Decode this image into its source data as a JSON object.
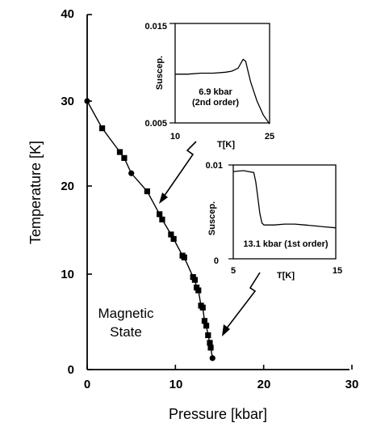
{
  "chart_data": [
    {
      "type": "line",
      "xlabel": "Pressure [kbar]",
      "ylabel": "Temperature [K]",
      "xlim": [
        0,
        30
      ],
      "ylim": [
        0,
        40
      ],
      "xticks": [
        "0",
        "10",
        "20",
        "30"
      ],
      "yticks": [
        "0",
        "10",
        "20",
        "30",
        "40"
      ],
      "annotation": [
        "Magnetic",
        "State"
      ],
      "series": [
        {
          "marker": "circle",
          "x": [
            0,
            5.0,
            14.2
          ],
          "y": [
            30,
            21.5,
            1.2
          ]
        },
        {
          "marker": "square",
          "x": [
            1.7,
            3.7,
            4.2,
            6.8,
            8.2,
            8.5,
            9.5,
            9.8,
            10.8,
            11.0,
            12.0,
            12.2,
            12.4,
            12.6,
            12.9,
            13.1,
            13.3,
            13.5,
            13.7,
            13.9,
            14.0
          ],
          "y": [
            26.8,
            24.0,
            23.3,
            19.4,
            16.8,
            16.2,
            14.5,
            14.0,
            12.1,
            11.9,
            9.7,
            9.4,
            8.6,
            8.3,
            6.7,
            6.5,
            5.1,
            4.6,
            3.6,
            2.8,
            2.3
          ]
        }
      ]
    },
    {
      "type": "line",
      "label_lines": [
        "6.9 kbar",
        "(2nd order)"
      ],
      "ylabel": "Suscep.",
      "xlabel": "T[K]",
      "xlim": [
        10,
        25
      ],
      "ylim": [
        0.005,
        0.015
      ],
      "xticks": [
        "10",
        "25"
      ],
      "yticks": [
        "0.015",
        "0.005"
      ],
      "x": [
        10,
        12,
        14,
        16,
        18,
        19,
        20,
        20.8,
        21.2,
        21.5,
        22,
        23,
        24,
        25
      ],
      "y": [
        0.0099,
        0.0099,
        0.01,
        0.01,
        0.0101,
        0.0102,
        0.0105,
        0.0114,
        0.0112,
        0.0104,
        0.0091,
        0.0072,
        0.0058,
        0.0049
      ]
    },
    {
      "type": "line",
      "label": "13.1 kbar (1st order)",
      "ylabel": "Suscep.",
      "xlabel": "T[K]",
      "xlim": [
        5,
        15
      ],
      "ylim": [
        0,
        0.01
      ],
      "xticks": [
        "5",
        "15"
      ],
      "yticks": [
        "0.01",
        "0"
      ],
      "x": [
        5,
        6,
        7,
        7.2,
        7.4,
        7.6,
        7.8,
        8.0,
        8.3,
        9,
        10,
        11,
        12,
        13,
        14,
        15
      ],
      "y": [
        0.0093,
        0.0094,
        0.0092,
        0.0082,
        0.0065,
        0.0048,
        0.0038,
        0.0036,
        0.0036,
        0.0036,
        0.0037,
        0.0037,
        0.0036,
        0.0035,
        0.0034,
        0.0033
      ]
    }
  ]
}
